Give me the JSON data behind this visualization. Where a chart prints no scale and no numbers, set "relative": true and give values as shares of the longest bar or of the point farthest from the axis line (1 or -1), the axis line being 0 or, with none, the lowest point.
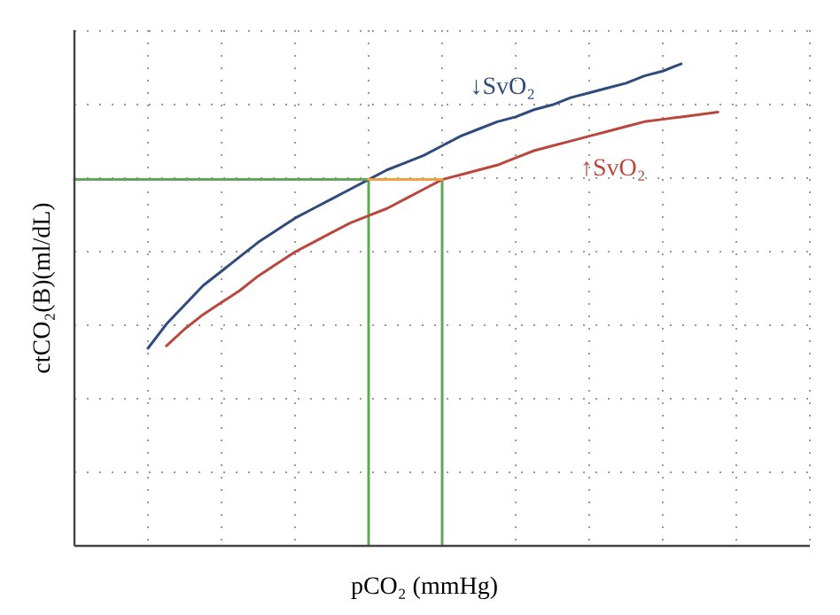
{
  "chart_data": {
    "type": "line",
    "relative": true,
    "xlabel": "pCO₂ (mmHg)",
    "ylabel": "ctCO₂(B)(ml/dL)",
    "categories": [
      null,
      null,
      null,
      null,
      null,
      null,
      null,
      null,
      null,
      null,
      null,
      null,
      null,
      null,
      null,
      null,
      null,
      null,
      null,
      null,
      null,
      null,
      null,
      null,
      null,
      null,
      null,
      null,
      null,
      null,
      null,
      null,
      null,
      null,
      null,
      null,
      null,
      null,
      null,
      null,
      null
    ],
    "grid": true,
    "marker": "none",
    "line_style": "solid",
    "series": [
      {
        "name": "↓SvO₂",
        "color": "#2f4b7c",
        "values": [
          null,
          null,
          null,
          null,
          0.41,
          0.46,
          0.5,
          0.54,
          0.57,
          0.6,
          0.63,
          0.655,
          0.68,
          0.7,
          0.72,
          0.74,
          0.76,
          0.78,
          0.795,
          0.81,
          0.83,
          0.85,
          0.865,
          0.88,
          0.89,
          0.905,
          0.915,
          0.93,
          0.94,
          0.95,
          0.96,
          0.975,
          0.985,
          1,
          null,
          null,
          null,
          null,
          null,
          null,
          null
        ]
      },
      {
        "name": "↑SvO₂",
        "color": "#b9473d",
        "values": [
          null,
          null,
          null,
          null,
          null,
          0.415,
          0.45,
          0.48,
          0.505,
          0.53,
          0.56,
          0.585,
          0.61,
          0.63,
          0.65,
          0.67,
          0.685,
          0.7,
          0.72,
          0.74,
          0.76,
          0.77,
          0.78,
          0.79,
          0.805,
          0.82,
          0.83,
          0.84,
          0.85,
          0.86,
          0.87,
          0.88,
          0.885,
          0.89,
          0.895,
          0.9,
          null,
          null,
          null,
          null,
          null
        ]
      },
      {
        "color": "#62a65a",
        "values": [
          0.76,
          0.76,
          0.76,
          0.76,
          0.76,
          0.76,
          0.76,
          0.76,
          0.76,
          0.76,
          0.76,
          0.76,
          0.76,
          0.76,
          0.76,
          0.76,
          0.76,
          null,
          null,
          null,
          null,
          null,
          null,
          null,
          null,
          null,
          null,
          null,
          null,
          null,
          null,
          null,
          null,
          null,
          null,
          null,
          null,
          null,
          null,
          null,
          null
        ]
      },
      {
        "color": "#f0a040",
        "values": [
          null,
          null,
          null,
          null,
          null,
          null,
          null,
          null,
          null,
          null,
          null,
          null,
          null,
          null,
          null,
          null,
          0.76,
          0.76,
          0.76,
          0.76,
          0.76,
          null,
          null,
          null,
          null,
          null,
          null,
          null,
          null,
          null,
          null,
          null,
          null,
          null,
          null,
          null,
          null,
          null,
          null,
          null,
          null
        ]
      }
    ]
  }
}
